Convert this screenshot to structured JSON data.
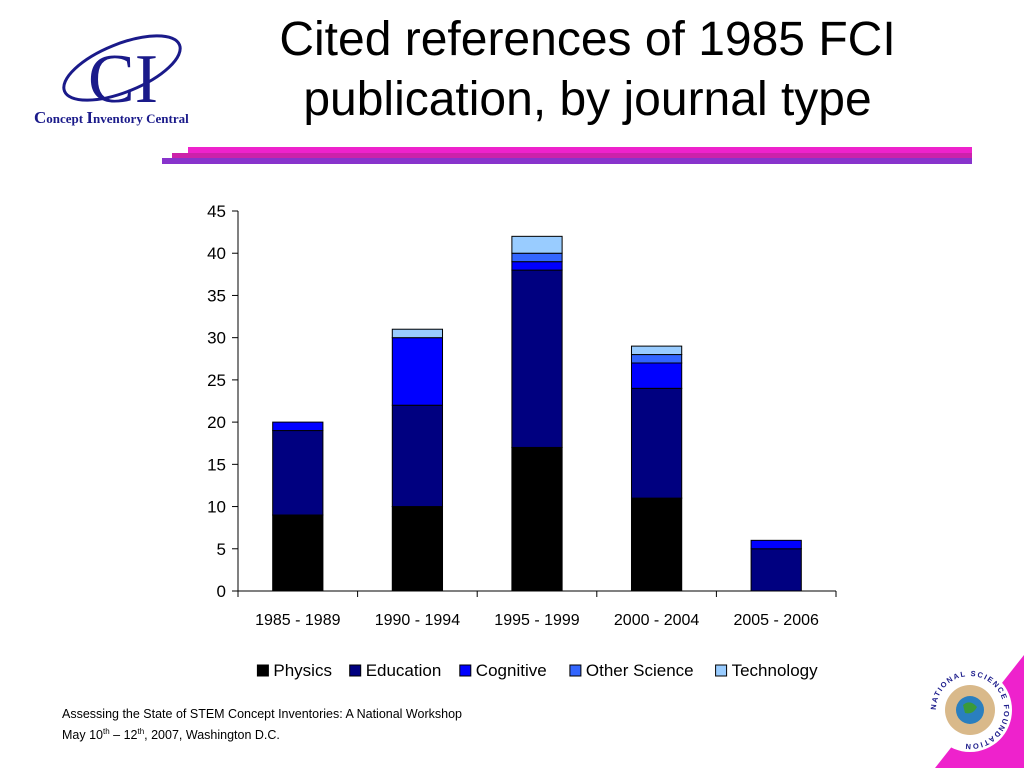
{
  "logo": {
    "initials": "CI",
    "text_prefix": "C",
    "text_1": "oncept ",
    "text_2": "I",
    "text_3": "nventory ",
    "text_4": "C",
    "text_5": "entral"
  },
  "title": {
    "line1": "Cited references of 1985 FCI",
    "line2": "publication, by journal type"
  },
  "colors": {
    "accent_magenta": "#ee22cc",
    "accent_purple": "#8833cc",
    "logo_blue": "#1a1a8a"
  },
  "chart_data": {
    "type": "bar",
    "stacked": true,
    "categories": [
      "1985 - 1989",
      "1990 - 1994",
      "1995 - 1999",
      "2000 - 2004",
      "2005 - 2006"
    ],
    "series": [
      {
        "name": "Physics",
        "color": "#000000",
        "values": [
          9,
          10,
          17,
          11,
          0
        ]
      },
      {
        "name": "Education",
        "color": "#000080",
        "values": [
          10,
          12,
          21,
          13,
          5
        ]
      },
      {
        "name": "Cognitive",
        "color": "#0000ff",
        "values": [
          1,
          8,
          1,
          3,
          1
        ]
      },
      {
        "name": "Other Science",
        "color": "#3366ff",
        "values": [
          0,
          0,
          1,
          1,
          0
        ]
      },
      {
        "name": "Technology",
        "color": "#99ccff",
        "values": [
          0,
          1,
          2,
          1,
          0
        ]
      }
    ],
    "ylim": [
      0,
      45
    ],
    "yticks": [
      0,
      5,
      10,
      15,
      20,
      25,
      30,
      35,
      40,
      45
    ],
    "grid": false,
    "legend_position": "bottom"
  },
  "footer": {
    "line1": "Assessing the State of STEM Concept Inventories: A National Workshop",
    "line2_a": "May 10",
    "line2_sup1": "th",
    "line2_b": " – 12",
    "line2_sup2": "th",
    "line2_c": ", 2007, Washington D.C."
  },
  "nsf_seal": {
    "text": "NATIONAL SCIENCE FOUNDATION"
  }
}
